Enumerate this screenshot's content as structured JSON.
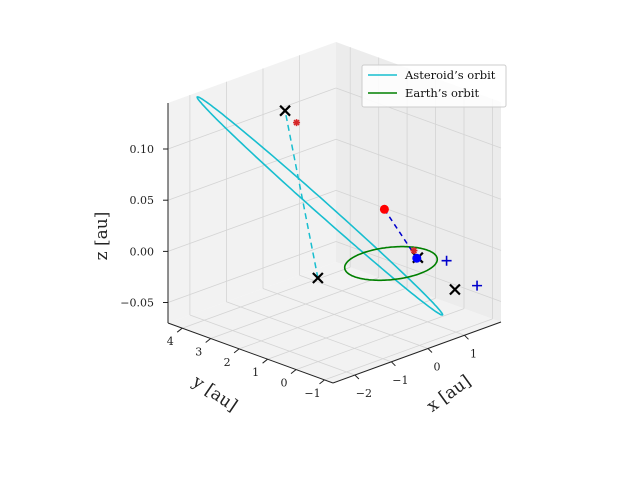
{
  "chart_data": {
    "type": "line",
    "projection": "3d",
    "title": "",
    "xlabel": "x [au]",
    "ylabel": "y [au]",
    "zlabel": "z [au]",
    "xlim": [
      -2.6,
      2.0
    ],
    "ylim": [
      -1.3,
      4.5
    ],
    "zlim": [
      -0.07,
      0.145
    ],
    "xticks": [
      -2,
      -1,
      0,
      1
    ],
    "xtick_labels": [
      "−2",
      "−1",
      "0",
      "1"
    ],
    "yticks": [
      -1,
      0,
      1,
      2,
      3,
      4
    ],
    "ytick_labels": [
      "−1",
      "0",
      "1",
      "2",
      "3",
      "4"
    ],
    "zticks": [
      -0.05,
      0.0,
      0.05,
      0.1
    ],
    "ztick_labels": [
      "−0.05",
      "0.00",
      "0.05",
      "0.10"
    ],
    "grid": true,
    "legend_position": "top-right",
    "series": [
      {
        "name": "Asteroid’s orbit",
        "color": "#17becf",
        "kind": "ellipse",
        "center": [
          -0.35,
          2.05,
          0.04
        ],
        "semi_axis_a": [
          -1.1,
          2.6,
          0.09
        ],
        "semi_axis_b": [
          1.35,
          0.15,
          -0.05
        ],
        "line_of_nodes": [
          [
            -1.55,
            0.58,
            0.0
          ],
          [
            0.45,
            4.3,
            0.1
          ]
        ]
      },
      {
        "name": "Earth’s orbit",
        "color": "#008000",
        "kind": "circle",
        "center": [
          0.0,
          0.0,
          0.0
        ],
        "radius": 1.0
      }
    ],
    "markers": [
      {
        "label": "black-x",
        "kind": "x",
        "color": "#000000",
        "points": [
          [
            -1.55,
            0.58,
            0.0
          ],
          [
            0.45,
            4.3,
            0.1
          ],
          [
            0.97,
            0.3,
            -0.01
          ],
          [
            1.05,
            -0.9,
            -0.03
          ]
        ]
      },
      {
        "label": "red-star",
        "kind": "star",
        "color": "#d62728",
        "points": [
          [
            -0.42,
            2.78,
            0.115
          ],
          [
            0.8,
            0.22,
            0.0
          ]
        ]
      },
      {
        "label": "blue-plus",
        "kind": "plus",
        "color": "#0000cc",
        "points": [
          [
            1.25,
            -0.35,
            -0.01
          ],
          [
            1.5,
            -1.1,
            -0.03
          ]
        ]
      },
      {
        "label": "red-dot",
        "kind": "dot",
        "color": "#ff0000",
        "points": [
          [
            0.6,
            1.0,
            0.035
          ]
        ]
      },
      {
        "label": "blue-dot",
        "kind": "dot",
        "color": "#0000ff",
        "points": [
          [
            0.55,
            -0.2,
            0.0
          ]
        ]
      }
    ],
    "connector": {
      "style": "dashed",
      "color": "#0000cc",
      "from": [
        0.6,
        1.0,
        0.035
      ],
      "to": [
        0.55,
        -0.2,
        0.0
      ]
    }
  }
}
